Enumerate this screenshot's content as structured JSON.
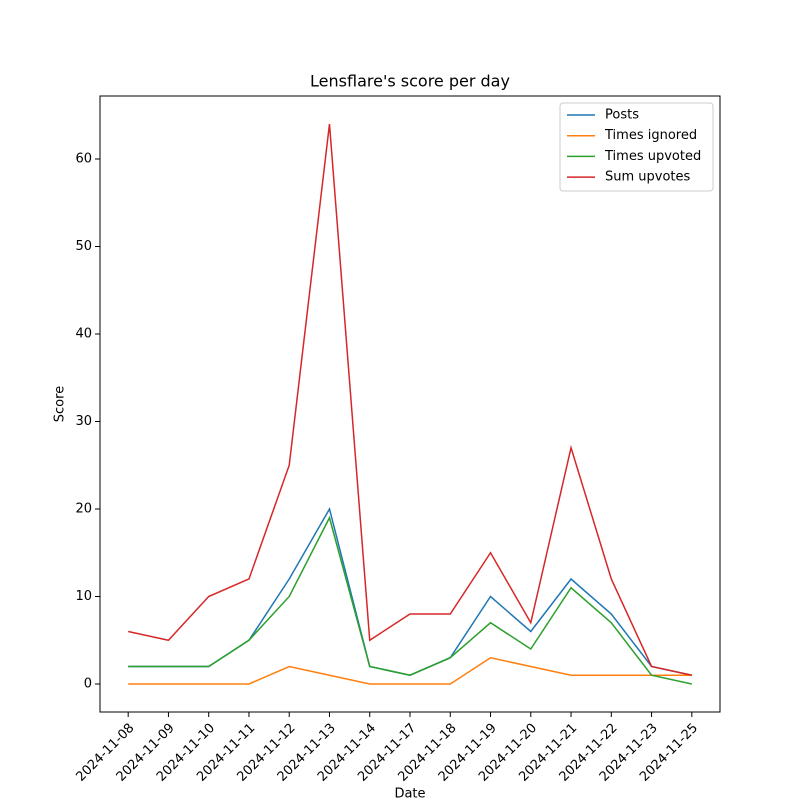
{
  "chart_data": {
    "type": "line",
    "title": "Lensflare's score per day",
    "x_label": "Date",
    "y_label": "Score",
    "categories": [
      "2024-11-08",
      "2024-11-09",
      "2024-11-10",
      "2024-11-11",
      "2024-11-12",
      "2024-11-13",
      "2024-11-14",
      "2024-11-17",
      "2024-11-18",
      "2024-11-19",
      "2024-11-20",
      "2024-11-21",
      "2024-11-22",
      "2024-11-23",
      "2024-11-25"
    ],
    "series": [
      {
        "name": "Posts",
        "color": "#1f77b4",
        "values": [
          2,
          2,
          2,
          5,
          12,
          20,
          2,
          1,
          3,
          10,
          6,
          12,
          8,
          2,
          1
        ]
      },
      {
        "name": "Times ignored",
        "color": "#ff7f0e",
        "values": [
          0,
          0,
          0,
          0,
          2,
          1,
          0,
          0,
          0,
          3,
          2,
          1,
          1,
          1,
          1
        ]
      },
      {
        "name": "Times upvoted",
        "color": "#2ca02c",
        "values": [
          2,
          2,
          2,
          5,
          10,
          19,
          2,
          1,
          3,
          7,
          4,
          11,
          7,
          1,
          0
        ]
      },
      {
        "name": "Sum upvotes",
        "color": "#d62728",
        "values": [
          6,
          5,
          10,
          12,
          25,
          64,
          5,
          8,
          8,
          15,
          7,
          27,
          12,
          2,
          1
        ]
      }
    ],
    "ylim": [
      -3.2,
      67.2
    ],
    "yticks": [
      0,
      10,
      20,
      30,
      40,
      50,
      60
    ],
    "legend": "upper right"
  }
}
